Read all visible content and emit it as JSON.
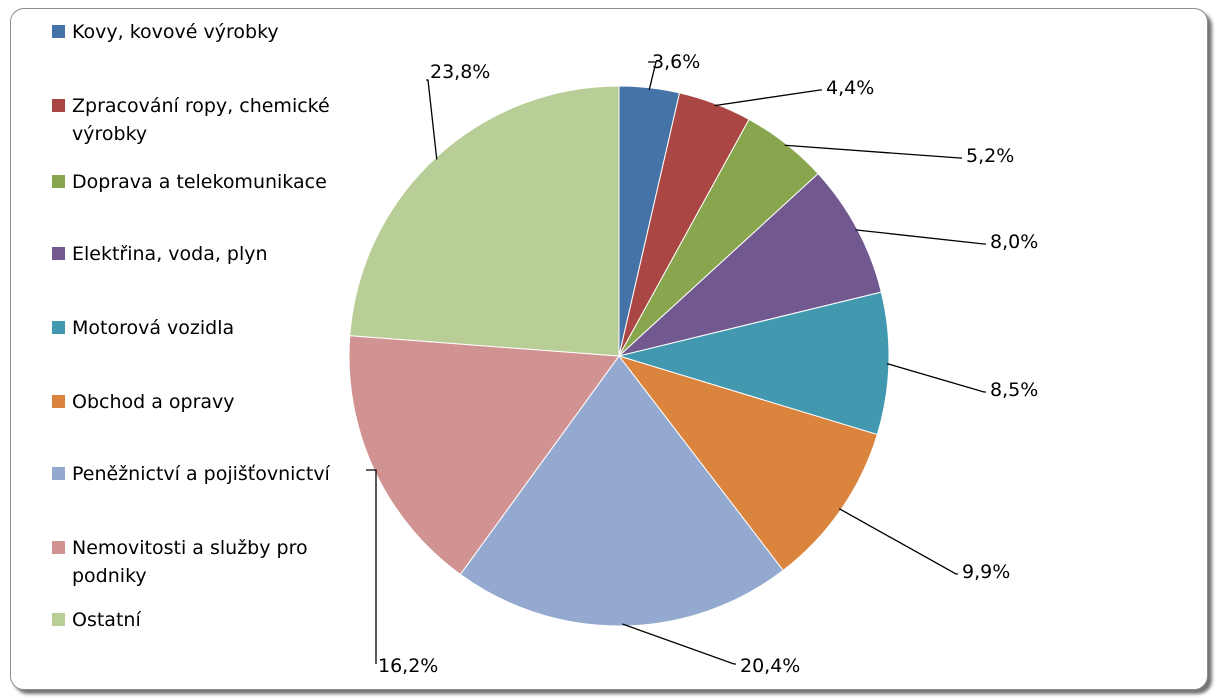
{
  "chart_data": {
    "type": "pie",
    "categories": [
      "Kovy, kovové výrobky",
      "Zpracování ropy, chemické výrobky",
      "Doprava a telekomunikace",
      "Elektřina, voda, plyn",
      "Motorová vozidla",
      "Obchod a opravy",
      "Peněžnictví a pojišťovnictví",
      "Nemovitosti a služby pro podniky",
      "Ostatní"
    ],
    "values": [
      3.6,
      4.4,
      5.2,
      8.0,
      8.5,
      9.9,
      20.4,
      16.2,
      23.8
    ],
    "data_labels": [
      "3,6%",
      "4,4%",
      "5,2%",
      "8,0%",
      "8,5%",
      "9,9%",
      "20,4%",
      "16,2%",
      "23,8%"
    ],
    "colors": [
      "#4572a7",
      "#aa4643",
      "#89a54e",
      "#71588f",
      "#4198af",
      "#db843d",
      "#93a9cf",
      "#d19392",
      "#b9cd96"
    ],
    "legend_position": "left",
    "start_angle": "12 o'clock, clockwise",
    "title": ""
  },
  "legend": {
    "items": [
      {
        "label_line1": "Kovy, kovové výrobky",
        "label_line2": ""
      },
      {
        "label_line1": "Zpracování ropy, chemické",
        "label_line2": "výrobky"
      },
      {
        "label_line1": "Doprava a telekomunikace",
        "label_line2": ""
      },
      {
        "label_line1": "Elektřina, voda, plyn",
        "label_line2": ""
      },
      {
        "label_line1": "Motorová vozidla",
        "label_line2": ""
      },
      {
        "label_line1": "Obchod a opravy",
        "label_line2": ""
      },
      {
        "label_line1": "Peněžnictví a pojišťovnictví",
        "label_line2": ""
      },
      {
        "label_line1": "Nemovitosti a služby pro",
        "label_line2": "podniky"
      },
      {
        "label_line1": "Ostatní",
        "label_line2": ""
      }
    ]
  }
}
